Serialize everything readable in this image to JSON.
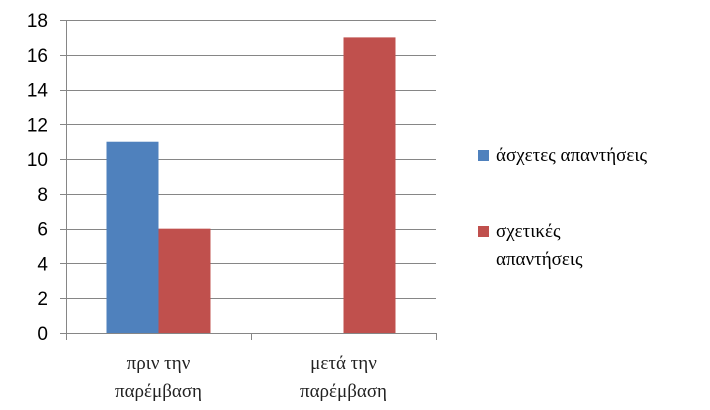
{
  "chart_data": {
    "type": "bar",
    "categories": [
      [
        "πριν την",
        "παρέμβαση"
      ],
      [
        "μετά την",
        "παρέμβαση"
      ]
    ],
    "series": [
      {
        "name": "άσχετες απαντήσεις",
        "values": [
          11,
          0
        ],
        "color": "#4f81bd"
      },
      {
        "name": "σχετικές απαντήσεις",
        "values": [
          6,
          17
        ],
        "color": "#c0504d"
      }
    ],
    "legend_lines": [
      [
        "άσχετες απαντήσεις"
      ],
      [
        "σχετικές",
        "απαντήσεις"
      ]
    ],
    "ylim": [
      0,
      18
    ],
    "yticks": [
      0,
      2,
      4,
      6,
      8,
      10,
      12,
      14,
      16,
      18
    ],
    "grid": true,
    "legend_position": "right",
    "title": "",
    "xlabel": "",
    "ylabel": ""
  }
}
